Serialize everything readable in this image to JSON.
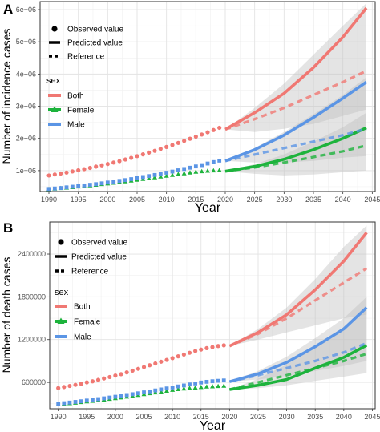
{
  "panels": [
    {
      "letter": "A",
      "legend": {
        "observed_label": "Observed value",
        "predicted_label": "Predicted value",
        "reference_label": "Reference",
        "sex_title": "sex"
      }
    },
    {
      "letter": "B",
      "legend": {
        "observed_label": "Observed value",
        "predicted_label": "Predicted value",
        "reference_label": "Reference",
        "sex_title": "sex"
      }
    }
  ],
  "colors": {
    "Both": "#F07873",
    "Female": "#1DB33C",
    "Male": "#5B95E5",
    "band": "#BEBEBE",
    "grid_major": "#E3E3E3",
    "grid_minor": "#F1F1F1",
    "panel_border": "#333333"
  },
  "chart_data": [
    {
      "type": "line",
      "panel": "A",
      "title": "",
      "xlabel": "Year",
      "ylabel": "Number of incidence cases",
      "xlim": [
        1988.5,
        2045.5
      ],
      "ylim": [
        350000,
        6250000
      ],
      "xticks": [
        1990,
        1995,
        2000,
        2005,
        2010,
        2015,
        2020,
        2025,
        2030,
        2035,
        2040,
        2045
      ],
      "yticks": [
        1000000,
        2000000,
        3000000,
        4000000,
        5000000,
        6000000
      ],
      "ytick_labels": [
        "1e+06",
        "2e+06",
        "3e+06",
        "4e+06",
        "5e+06",
        "6e+06"
      ],
      "legend": {
        "title": "sex",
        "entries": [
          "Both",
          "Female",
          "Male"
        ],
        "line_types": [
          "Observed value",
          "Predicted value",
          "Reference"
        ],
        "position": "top-left"
      },
      "grid": true,
      "series": [
        {
          "name": "Both",
          "color": "#F07873",
          "observed_marker": "circle",
          "observed": {
            "x": [
              1990,
              1991,
              1992,
              1993,
              1994,
              1995,
              1996,
              1997,
              1998,
              1999,
              2000,
              2001,
              2002,
              2003,
              2004,
              2005,
              2006,
              2007,
              2008,
              2009,
              2010,
              2011,
              2012,
              2013,
              2014,
              2015,
              2016,
              2017,
              2018,
              2019
            ],
            "y": [
              850000,
              880000,
              910000,
              940000,
              975000,
              1010000,
              1045000,
              1085000,
              1125000,
              1165000,
              1205000,
              1250000,
              1295000,
              1345000,
              1395000,
              1450000,
              1505000,
              1560000,
              1615000,
              1675000,
              1735000,
              1795000,
              1860000,
              1925000,
              1990000,
              2055000,
              2120000,
              2190000,
              2260000,
              2330000
            ]
          },
          "predicted": {
            "x": [
              2020,
              2025,
              2030,
              2035,
              2040,
              2044
            ],
            "y": [
              2280000,
              2800000,
              3400000,
              4200000,
              5150000,
              6050000
            ]
          },
          "reference": {
            "x": [
              2020,
              2025,
              2030,
              2035,
              2040,
              2044
            ],
            "y": [
              2280000,
              2600000,
              2950000,
              3350000,
              3750000,
              4100000
            ]
          },
          "band": {
            "x": [
              2020,
              2025,
              2030,
              2035,
              2040,
              2044
            ],
            "lower": [
              2280000,
              2200000,
              2300000,
              2450000,
              2700000,
              2900000
            ],
            "upper": [
              2280000,
              2950000,
              3700000,
              4600000,
              5500000,
              6200000
            ]
          }
        },
        {
          "name": "Female",
          "color": "#1DB33C",
          "observed_marker": "triangle",
          "observed": {
            "x": [
              1990,
              1991,
              1992,
              1993,
              1994,
              1995,
              1996,
              1997,
              1998,
              1999,
              2000,
              2001,
              2002,
              2003,
              2004,
              2005,
              2006,
              2007,
              2008,
              2009,
              2010,
              2011,
              2012,
              2013,
              2014,
              2015,
              2016,
              2017,
              2018,
              2019
            ],
            "y": [
              420000,
              435000,
              450000,
              465000,
              480000,
              500000,
              515000,
              535000,
              555000,
              575000,
              595000,
              615000,
              640000,
              660000,
              685000,
              710000,
              735000,
              760000,
              785000,
              810000,
              835000,
              860000,
              885000,
              910000,
              935000,
              960000,
              975000,
              990000,
              1000000,
              1010000
            ]
          },
          "predicted": {
            "x": [
              2020,
              2025,
              2030,
              2035,
              2040,
              2044
            ],
            "y": [
              980000,
              1130000,
              1350000,
              1650000,
              2000000,
              2330000
            ]
          },
          "reference": {
            "x": [
              2020,
              2025,
              2030,
              2035,
              2040,
              2044
            ],
            "y": [
              980000,
              1100000,
              1250000,
              1420000,
              1600000,
              1780000
            ]
          },
          "band": {
            "x": [
              2020,
              2025,
              2030,
              2035,
              2040,
              2044
            ],
            "lower": [
              980000,
              900000,
              850000,
              880000,
              950000,
              1000000
            ],
            "upper": [
              980000,
              1200000,
              1500000,
              1900000,
              2350000,
              2800000
            ]
          }
        },
        {
          "name": "Male",
          "color": "#5B95E5",
          "observed_marker": "square",
          "observed": {
            "x": [
              1990,
              1991,
              1992,
              1993,
              1994,
              1995,
              1996,
              1997,
              1998,
              1999,
              2000,
              2001,
              2002,
              2003,
              2004,
              2005,
              2006,
              2007,
              2008,
              2009,
              2010,
              2011,
              2012,
              2013,
              2014,
              2015,
              2016,
              2017,
              2018,
              2019
            ],
            "y": [
              430000,
              445000,
              460000,
              480000,
              500000,
              520000,
              540000,
              560000,
              580000,
              605000,
              630000,
              655000,
              680000,
              705000,
              735000,
              765000,
              800000,
              830000,
              865000,
              900000,
              935000,
              970000,
              1010000,
              1050000,
              1090000,
              1130000,
              1170000,
              1220000,
              1265000,
              1310000
            ]
          },
          "predicted": {
            "x": [
              2020,
              2025,
              2030,
              2035,
              2040,
              2044
            ],
            "y": [
              1300000,
              1650000,
              2100000,
              2650000,
              3250000,
              3750000
            ]
          },
          "reference": {
            "x": [
              2020,
              2025,
              2030,
              2035,
              2040,
              2044
            ],
            "y": [
              1300000,
              1500000,
              1700000,
              1900000,
              2100000,
              2300000
            ]
          },
          "band": {
            "x": [
              2020,
              2025,
              2030,
              2035,
              2040,
              2044
            ],
            "lower": [
              1300000,
              1250000,
              1250000,
              1300000,
              1400000,
              1450000
            ],
            "upper": [
              1300000,
              1700000,
              2200000,
              2750000,
              3350000,
              3900000
            ]
          }
        }
      ]
    },
    {
      "type": "line",
      "panel": "B",
      "title": "",
      "xlabel": "Year",
      "ylabel": "Number of death cases",
      "xlim": [
        1988.5,
        2045.5
      ],
      "ylim": [
        230000,
        2850000
      ],
      "xticks": [
        1990,
        1995,
        2000,
        2005,
        2010,
        2015,
        2020,
        2025,
        2030,
        2035,
        2040,
        2045
      ],
      "yticks": [
        600000,
        1200000,
        1800000,
        2400000
      ],
      "ytick_labels": [
        "600000",
        "1200000",
        "1800000",
        "2400000"
      ],
      "legend": {
        "title": "sex",
        "entries": [
          "Both",
          "Female",
          "Male"
        ],
        "line_types": [
          "Observed value",
          "Predicted value",
          "Reference"
        ],
        "position": "top-left"
      },
      "grid": true,
      "series": [
        {
          "name": "Both",
          "color": "#F07873",
          "observed_marker": "circle",
          "observed": {
            "x": [
              1990,
              1991,
              1992,
              1993,
              1994,
              1995,
              1996,
              1997,
              1998,
              1999,
              2000,
              2001,
              2002,
              2003,
              2004,
              2005,
              2006,
              2007,
              2008,
              2009,
              2010,
              2011,
              2012,
              2013,
              2014,
              2015,
              2016,
              2017,
              2018,
              2019
            ],
            "y": [
              520000,
              535000,
              550000,
              565000,
              580000,
              600000,
              615000,
              635000,
              655000,
              675000,
              695000,
              715000,
              740000,
              765000,
              790000,
              815000,
              840000,
              865000,
              890000,
              915000,
              940000,
              965000,
              990000,
              1015000,
              1040000,
              1060000,
              1080000,
              1095000,
              1110000,
              1120000
            ]
          },
          "predicted": {
            "x": [
              2020,
              2025,
              2030,
              2035,
              2040,
              2044
            ],
            "y": [
              1110000,
              1300000,
              1550000,
              1900000,
              2300000,
              2700000
            ]
          },
          "reference": {
            "x": [
              2020,
              2025,
              2030,
              2035,
              2040,
              2044
            ],
            "y": [
              1110000,
              1280000,
              1500000,
              1750000,
              2000000,
              2200000
            ]
          },
          "band": {
            "x": [
              2020,
              2025,
              2030,
              2035,
              2040,
              2044
            ],
            "lower": [
              1110000,
              1200000,
              1300000,
              1400000,
              1500000,
              1550000
            ],
            "upper": [
              1110000,
              1350000,
              1650000,
              2050000,
              2500000,
              2800000
            ]
          }
        },
        {
          "name": "Female",
          "color": "#1DB33C",
          "observed_marker": "triangle",
          "observed": {
            "x": [
              1990,
              1991,
              1992,
              1993,
              1994,
              1995,
              1996,
              1997,
              1998,
              1999,
              2000,
              2001,
              2002,
              2003,
              2004,
              2005,
              2006,
              2007,
              2008,
              2009,
              2010,
              2011,
              2012,
              2013,
              2014,
              2015,
              2016,
              2017,
              2018,
              2019
            ],
            "y": [
              290000,
              297000,
              305000,
              313000,
              321000,
              330000,
              338000,
              347000,
              356000,
              366000,
              376000,
              386000,
              397000,
              408000,
              420000,
              432000,
              444000,
              456000,
              468000,
              480000,
              492000,
              502000,
              510000,
              518000,
              525000,
              532000,
              538000,
              542000,
              546000,
              550000
            ]
          },
          "predicted": {
            "x": [
              2020,
              2025,
              2030,
              2035,
              2040,
              2044
            ],
            "y": [
              500000,
              560000,
              640000,
              800000,
              950000,
              1120000
            ]
          },
          "reference": {
            "x": [
              2020,
              2025,
              2030,
              2035,
              2040,
              2044
            ],
            "y": [
              500000,
              600000,
              700000,
              800000,
              900000,
              1000000
            ]
          },
          "band": {
            "x": [
              2020,
              2025,
              2030,
              2035,
              2040,
              2044
            ],
            "lower": [
              500000,
              520000,
              560000,
              620000,
              680000,
              730000
            ],
            "upper": [
              500000,
              650000,
              850000,
              1100000,
              1380000,
              1650000
            ]
          }
        },
        {
          "name": "Male",
          "color": "#5B95E5",
          "observed_marker": "square",
          "observed": {
            "x": [
              1990,
              1991,
              1992,
              1993,
              1994,
              1995,
              1996,
              1997,
              1998,
              1999,
              2000,
              2001,
              2002,
              2003,
              2004,
              2005,
              2006,
              2007,
              2008,
              2009,
              2010,
              2011,
              2012,
              2013,
              2014,
              2015,
              2016,
              2017,
              2018,
              2019
            ],
            "y": [
              300000,
              308000,
              317000,
              326000,
              335000,
              345000,
              355000,
              365000,
              376000,
              387000,
              398000,
              410000,
              422000,
              434000,
              447000,
              460000,
              473000,
              487000,
              501000,
              515000,
              529000,
              543000,
              557000,
              571000,
              585000,
              598000,
              608000,
              616000,
              622000,
              627000
            ]
          },
          "predicted": {
            "x": [
              2020,
              2025,
              2030,
              2035,
              2040,
              2044
            ],
            "y": [
              610000,
              720000,
              880000,
              1100000,
              1350000,
              1650000
            ]
          },
          "reference": {
            "x": [
              2020,
              2025,
              2030,
              2035,
              2040,
              2044
            ],
            "y": [
              610000,
              700000,
              800000,
              900000,
              1020000,
              1150000
            ]
          },
          "band": {
            "x": [
              2020,
              2025,
              2030,
              2035,
              2040,
              2044
            ],
            "lower": [
              610000,
              640000,
              690000,
              760000,
              830000,
              900000
            ],
            "upper": [
              610000,
              760000,
              960000,
              1220000,
              1500000,
              1800000
            ]
          }
        }
      ]
    }
  ]
}
